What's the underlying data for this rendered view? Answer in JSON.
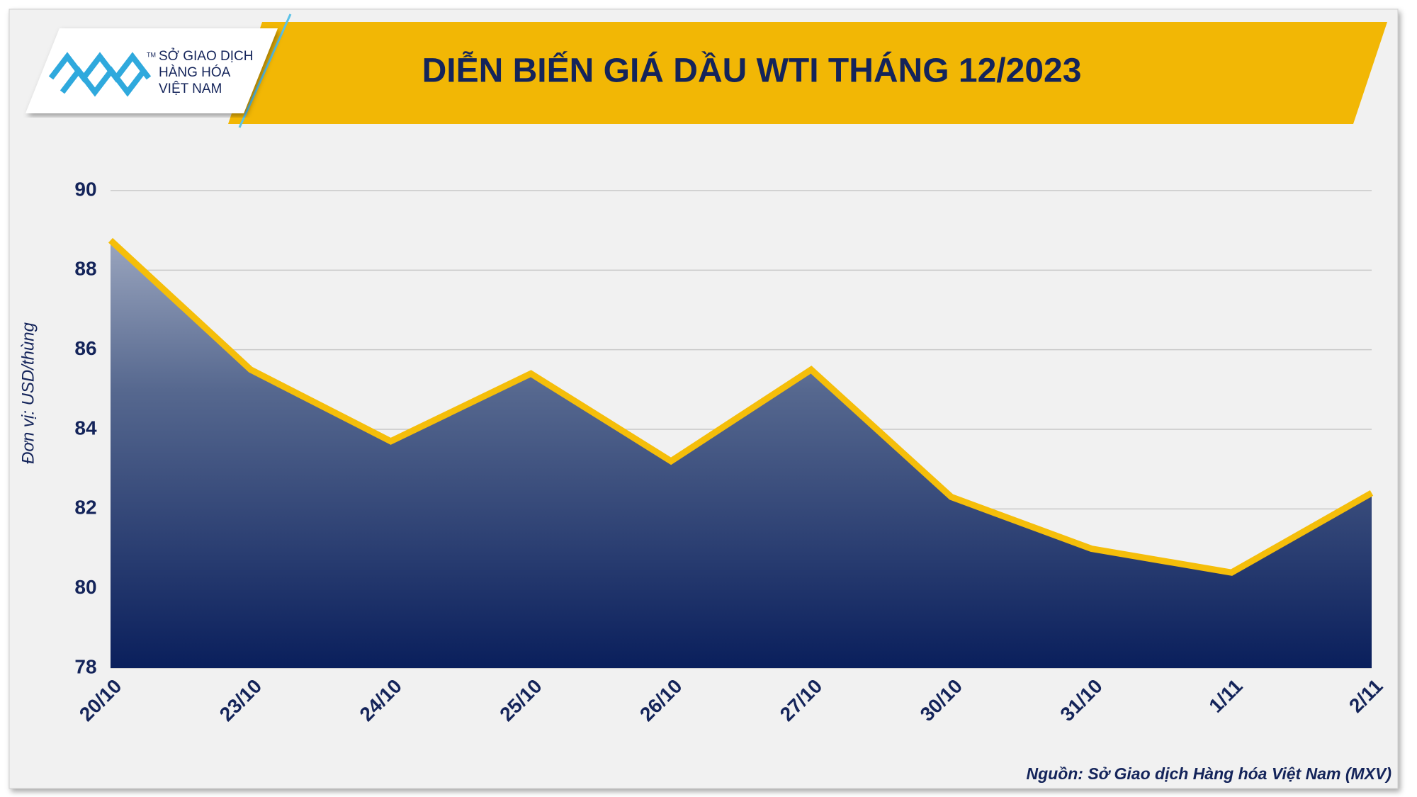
{
  "logo": {
    "lines": [
      "SỞ GIAO DỊCH",
      "HÀNG HÓA",
      "VIỆT NAM"
    ],
    "mark": "TM"
  },
  "chart_data": {
    "type": "area",
    "title": "DIỄN BIẾN GIÁ DẦU WTI THÁNG 12/2023",
    "y_label": "Đơn vị: USD/thùng",
    "source": "Nguồn: Sở Giao dịch Hàng hóa Việt Nam (MXV)",
    "categories": [
      "20/10",
      "23/10",
      "24/10",
      "25/10",
      "26/10",
      "27/10",
      "30/10",
      "31/10",
      "1/11",
      "2/11"
    ],
    "values": [
      88.75,
      85.5,
      83.7,
      85.4,
      83.2,
      85.5,
      82.3,
      81.0,
      80.4,
      82.4
    ],
    "color": "#f5be0a",
    "ylim": [
      78,
      90
    ],
    "yticks": [
      78,
      80,
      82,
      84,
      86,
      88,
      90
    ],
    "grid": true
  }
}
